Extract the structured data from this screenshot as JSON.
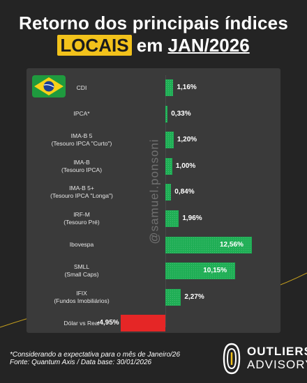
{
  "title": {
    "line1": "Retorno dos principais índices",
    "highlight": "LOCAIS",
    "mid": " em ",
    "period": "JAN/2026"
  },
  "flag": {
    "country": "Brazil",
    "icon": "brazil-flag-icon"
  },
  "watermark": "@samuel.ponsoni",
  "chart_data": {
    "type": "bar",
    "orientation": "horizontal",
    "unit": "%",
    "categories": [
      [
        "CDI"
      ],
      [
        "IPCA*"
      ],
      [
        "IMA-B 5",
        "(Tesouro IPCA \"Curto\")"
      ],
      [
        "IMA-B",
        "(Tesouro IPCA)"
      ],
      [
        "IMA-B 5+",
        "(Tesouro IPCA \"Longa\")"
      ],
      [
        "IRF-M",
        "(Tesouro Pré)"
      ],
      [
        "Ibovespa"
      ],
      [
        "SMLL",
        "(Small Caps)"
      ],
      [
        "IFIX",
        "(Fundos Imobiliários)"
      ],
      [
        "Dólar vs Real"
      ]
    ],
    "values": [
      1.16,
      0.33,
      1.2,
      1.0,
      0.84,
      1.96,
      12.56,
      10.15,
      2.27,
      -4.95
    ],
    "value_labels": [
      "1,16%",
      "0,33%",
      "1,20%",
      "1,00%",
      "0,84%",
      "1,96%",
      "12,56%",
      "10,15%",
      "2,27%",
      "-4,95%"
    ],
    "colors": {
      "positive": "#1fae55",
      "negative": "#e52626"
    },
    "xlim": [
      -5.5,
      13.3
    ],
    "grid": false,
    "legend": "none"
  },
  "footnote": {
    "line1": "*Considerando a expectativa para o mês de Janeiro/26",
    "line2": "Fonte: Quantum Axis / Data base: 30/01/2026"
  },
  "brand": {
    "line1": "OUTLIERS",
    "line2": "ADVISORY",
    "accent": "#f2c21b"
  }
}
